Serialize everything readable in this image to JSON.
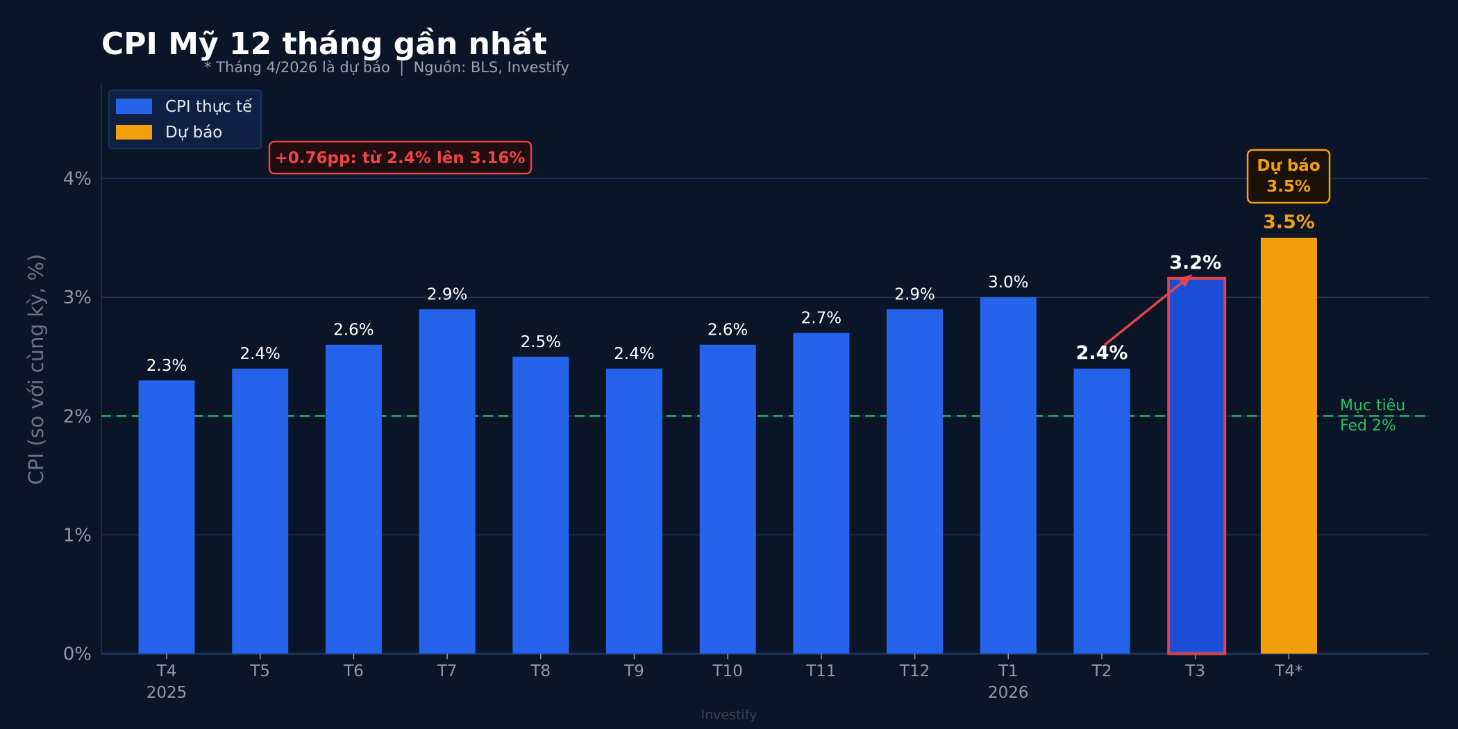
{
  "colors": {
    "background": "#0a1628",
    "actual": "#2563eb",
    "highlight": "#1d4ed8",
    "highlight_border": "#e0444c",
    "forecast": "#f59e0b",
    "target": "#22c55e",
    "grid": "#1e3358",
    "text": "#ffffff",
    "muted": "#94a3b8"
  },
  "chart_data": {
    "type": "bar",
    "title": "CPI Mỹ 12 tháng gần nhất",
    "subtitle": "* Tháng 4/2026 là dự báo  |  Nguồn: BLS, Investify",
    "ylabel": "CPI (so với cùng kỳ, %)",
    "xlabel": "",
    "ylim": [
      0,
      4.8
    ],
    "yticks": [
      0,
      1,
      2,
      3,
      4
    ],
    "ytick_labels": [
      "0%",
      "1%",
      "2%",
      "3%",
      "4%"
    ],
    "grid": true,
    "legend_position": "top-left",
    "categories": [
      "T4",
      "T5",
      "T6",
      "T7",
      "T8",
      "T9",
      "T10",
      "T11",
      "T12",
      "T1",
      "T2",
      "T3",
      "T4*"
    ],
    "year_labels": [
      {
        "index": 0,
        "label": "2025"
      },
      {
        "index": 9,
        "label": "2026"
      }
    ],
    "series": [
      {
        "name": "CPI thực tế",
        "values": [
          2.3,
          2.4,
          2.6,
          2.9,
          2.5,
          2.4,
          2.6,
          2.7,
          2.9,
          3.0,
          2.4,
          3.16,
          null
        ]
      },
      {
        "name": "Dự báo",
        "values": [
          null,
          null,
          null,
          null,
          null,
          null,
          null,
          null,
          null,
          null,
          null,
          null,
          3.5
        ]
      }
    ],
    "data_labels": [
      "2.3%",
      "2.4%",
      "2.6%",
      "2.9%",
      "2.5%",
      "2.4%",
      "2.6%",
      "2.7%",
      "2.9%",
      "3.0%",
      "2.4%",
      "3.2%",
      "3.5%"
    ],
    "reference_line": {
      "value": 2,
      "label_line1": "Mục tiêu",
      "label_line2": "Fed 2%"
    },
    "annotations": {
      "change": "+0.76pp: từ 2.4% lên 3.16%",
      "forecast_line1": "Dự báo",
      "forecast_line2": "3.5%"
    },
    "watermark": "Investify"
  }
}
